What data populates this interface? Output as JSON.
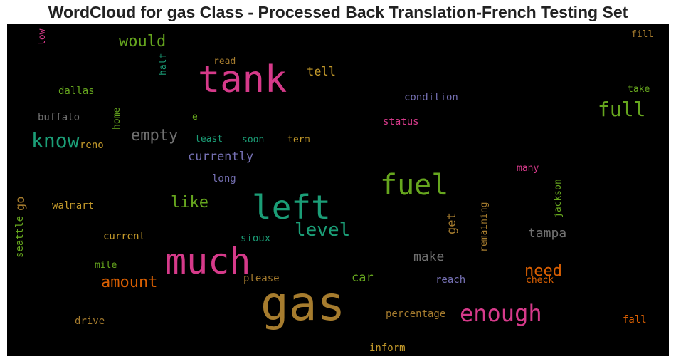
{
  "title": "WordCloud for gas Class - Processed Back Translation-French Testing Set",
  "colors": {
    "pink": "#d63a8a",
    "gold": "#a67c2e",
    "amber": "#c49a2b",
    "green": "#66a61e",
    "teal": "#1b9e77",
    "gray": "#707070",
    "purple": "#7570b3",
    "orange": "#d95f02"
  },
  "words": [
    {
      "text": "gas",
      "color": "gold"
    },
    {
      "text": "tank",
      "color": "pink"
    },
    {
      "text": "much",
      "color": "pink"
    },
    {
      "text": "left",
      "color": "teal"
    },
    {
      "text": "fuel",
      "color": "green"
    },
    {
      "text": "enough",
      "color": "pink"
    },
    {
      "text": "know",
      "color": "teal"
    },
    {
      "text": "full",
      "color": "green"
    },
    {
      "text": "level",
      "color": "teal"
    },
    {
      "text": "amount",
      "color": "orange"
    },
    {
      "text": "would",
      "color": "green"
    },
    {
      "text": "empty",
      "color": "gray"
    },
    {
      "text": "like",
      "color": "green"
    },
    {
      "text": "need",
      "color": "orange"
    },
    {
      "text": "make",
      "color": "gray"
    },
    {
      "text": "tampa",
      "color": "gray"
    },
    {
      "text": "currently",
      "color": "purple"
    },
    {
      "text": "tell",
      "color": "amber"
    },
    {
      "text": "car",
      "color": "green"
    },
    {
      "text": "get",
      "color": "gold"
    },
    {
      "text": "go",
      "color": "gold"
    },
    {
      "text": "reno",
      "color": "amber"
    },
    {
      "text": "seattle",
      "color": "green"
    },
    {
      "text": "jackson",
      "color": "green"
    },
    {
      "text": "remaining",
      "color": "gold"
    },
    {
      "text": "condition",
      "color": "purple"
    },
    {
      "text": "status",
      "color": "pink"
    },
    {
      "text": "dallas",
      "color": "green"
    },
    {
      "text": "buffalo",
      "color": "gray"
    },
    {
      "text": "walmart",
      "color": "amber"
    },
    {
      "text": "current",
      "color": "amber"
    },
    {
      "text": "mile",
      "color": "green"
    },
    {
      "text": "drive",
      "color": "gold"
    },
    {
      "text": "inform",
      "color": "amber"
    },
    {
      "text": "percentage",
      "color": "gold"
    },
    {
      "text": "reach",
      "color": "purple"
    },
    {
      "text": "check",
      "color": "orange"
    },
    {
      "text": "fall",
      "color": "orange"
    },
    {
      "text": "please",
      "color": "gold"
    },
    {
      "text": "sioux",
      "color": "teal"
    },
    {
      "text": "long",
      "color": "purple"
    },
    {
      "text": "many",
      "color": "pink"
    },
    {
      "text": "least",
      "color": "teal"
    },
    {
      "text": "soon",
      "color": "teal"
    },
    {
      "text": "term",
      "color": "amber"
    },
    {
      "text": "e",
      "color": "green"
    },
    {
      "text": "home",
      "color": "green"
    },
    {
      "text": "half",
      "color": "teal"
    },
    {
      "text": "read",
      "color": "gold"
    },
    {
      "text": "low",
      "color": "pink"
    },
    {
      "text": "take",
      "color": "green"
    },
    {
      "text": "fill",
      "color": "gold"
    }
  ]
}
